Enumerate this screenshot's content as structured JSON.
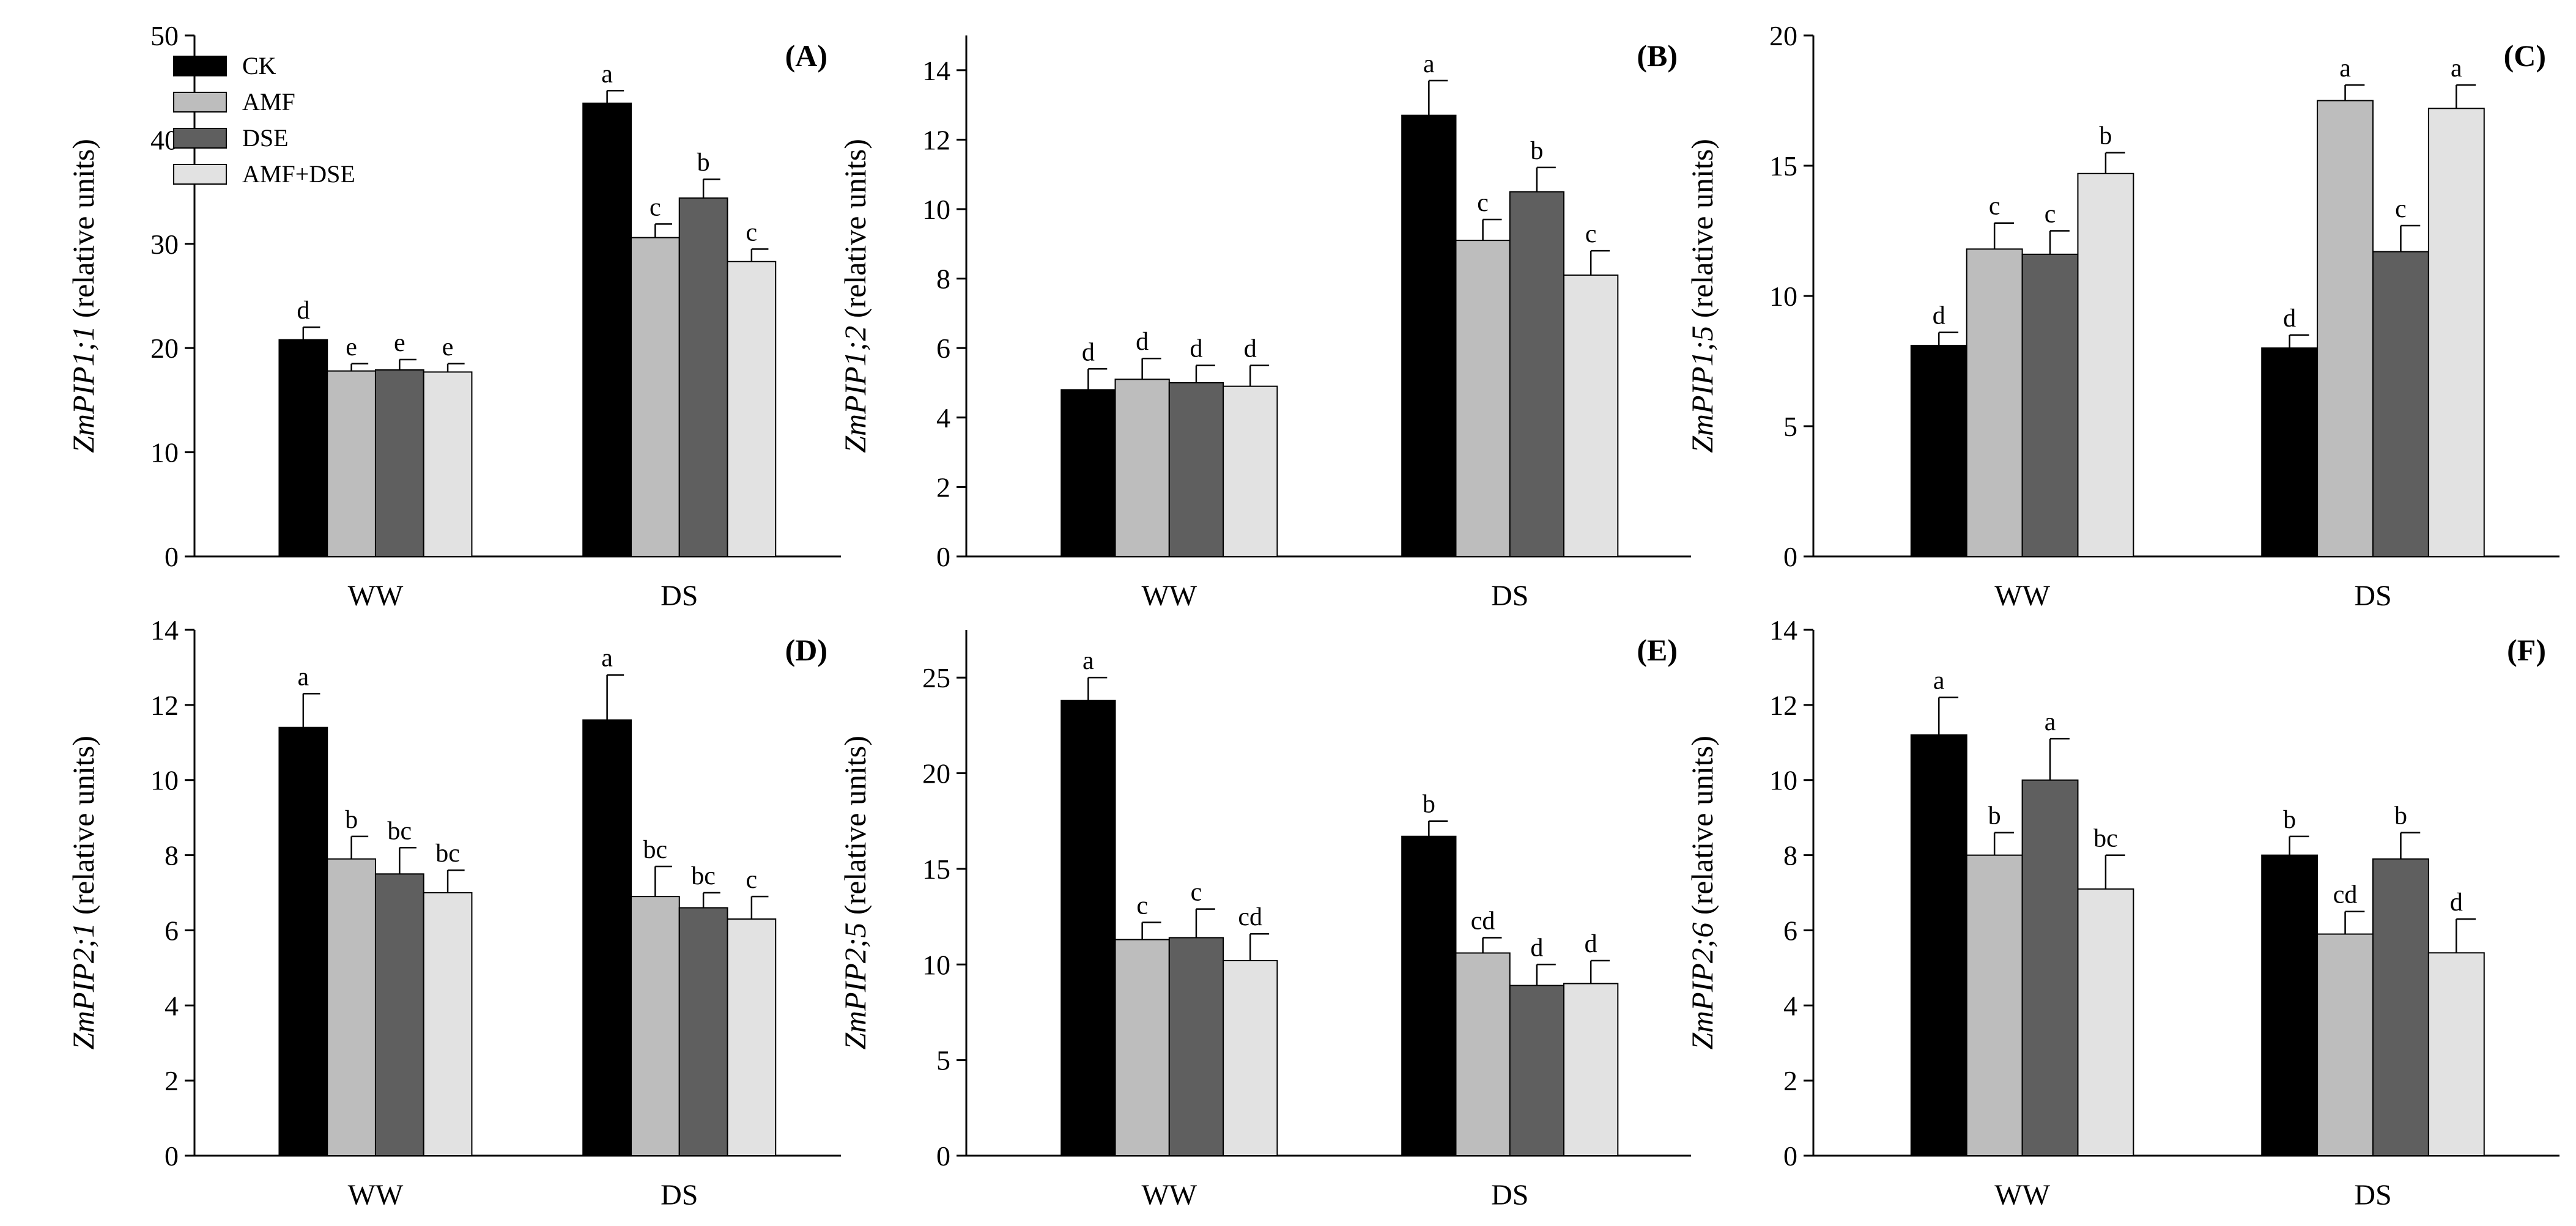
{
  "legend": {
    "items": [
      {
        "label": "CK",
        "color": "#000000"
      },
      {
        "label": "AMF",
        "color": "#bdbdbd"
      },
      {
        "label": "DSE",
        "color": "#5f5f5f"
      },
      {
        "label": "AMF+DSE",
        "color": "#e2e2e2"
      }
    ]
  },
  "chart_data": [
    {
      "type": "bar",
      "panel": "(A)",
      "gene": "ZmPIP1;1",
      "unit": "(relative units)",
      "categories": [
        "WW",
        "DS"
      ],
      "ylim": [
        0,
        50
      ],
      "yticks": [
        0,
        10,
        20,
        30,
        40,
        50
      ],
      "series": [
        {
          "name": "CK",
          "values": [
            20.8,
            43.5
          ],
          "errors": [
            1.2,
            1.2
          ],
          "letters": [
            "d",
            "a"
          ]
        },
        {
          "name": "AMF",
          "values": [
            17.8,
            30.6
          ],
          "errors": [
            0.7,
            1.3
          ],
          "letters": [
            "e",
            "c"
          ]
        },
        {
          "name": "DSE",
          "values": [
            17.9,
            34.4
          ],
          "errors": [
            1.0,
            1.8
          ],
          "letters": [
            "e",
            "b"
          ]
        },
        {
          "name": "AMF+DSE",
          "values": [
            17.7,
            28.3
          ],
          "errors": [
            0.8,
            1.2
          ],
          "letters": [
            "e",
            "c"
          ]
        }
      ]
    },
    {
      "type": "bar",
      "panel": "(B)",
      "gene": "ZmPIP1;2",
      "unit": "(relative units)",
      "categories": [
        "WW",
        "DS"
      ],
      "ylim": [
        0,
        15
      ],
      "yticks": [
        0,
        2,
        4,
        6,
        8,
        10,
        12,
        14
      ],
      "series": [
        {
          "name": "CK",
          "values": [
            4.8,
            12.7
          ],
          "errors": [
            0.6,
            1.0
          ],
          "letters": [
            "d",
            "a"
          ]
        },
        {
          "name": "AMF",
          "values": [
            5.1,
            9.1
          ],
          "errors": [
            0.6,
            0.6
          ],
          "letters": [
            "d",
            "c"
          ]
        },
        {
          "name": "DSE",
          "values": [
            5.0,
            10.5
          ],
          "errors": [
            0.5,
            0.7
          ],
          "letters": [
            "d",
            "b"
          ]
        },
        {
          "name": "AMF+DSE",
          "values": [
            4.9,
            8.1
          ],
          "errors": [
            0.6,
            0.7
          ],
          "letters": [
            "d",
            "c"
          ]
        }
      ]
    },
    {
      "type": "bar",
      "panel": "(C)",
      "gene": "ZmPIP1;5",
      "unit": "(relative units)",
      "categories": [
        "WW",
        "DS"
      ],
      "ylim": [
        0,
        20
      ],
      "yticks": [
        0,
        5,
        10,
        15,
        20
      ],
      "series": [
        {
          "name": "CK",
          "values": [
            8.1,
            8.0
          ],
          "errors": [
            0.5,
            0.5
          ],
          "letters": [
            "d",
            "d"
          ]
        },
        {
          "name": "AMF",
          "values": [
            11.8,
            17.5
          ],
          "errors": [
            1.0,
            0.6
          ],
          "letters": [
            "c",
            "a"
          ]
        },
        {
          "name": "DSE",
          "values": [
            11.6,
            11.7
          ],
          "errors": [
            0.9,
            1.0
          ],
          "letters": [
            "c",
            "c"
          ]
        },
        {
          "name": "AMF+DSE",
          "values": [
            14.7,
            17.2
          ],
          "errors": [
            0.8,
            0.9
          ],
          "letters": [
            "b",
            "a"
          ]
        }
      ]
    },
    {
      "type": "bar",
      "panel": "(D)",
      "gene": "ZmPIP2;1",
      "unit": "(relative units)",
      "categories": [
        "WW",
        "DS"
      ],
      "ylim": [
        0,
        14
      ],
      "yticks": [
        0,
        2,
        4,
        6,
        8,
        10,
        12,
        14
      ],
      "series": [
        {
          "name": "CK",
          "values": [
            11.4,
            11.6
          ],
          "errors": [
            0.9,
            1.2
          ],
          "letters": [
            "a",
            "a"
          ]
        },
        {
          "name": "AMF",
          "values": [
            7.9,
            6.9
          ],
          "errors": [
            0.6,
            0.8
          ],
          "letters": [
            "b",
            "bc"
          ]
        },
        {
          "name": "DSE",
          "values": [
            7.5,
            6.6
          ],
          "errors": [
            0.7,
            0.4
          ],
          "letters": [
            "bc",
            "bc"
          ]
        },
        {
          "name": "AMF+DSE",
          "values": [
            7.0,
            6.3
          ],
          "errors": [
            0.6,
            0.6
          ],
          "letters": [
            "bc",
            "c"
          ]
        }
      ]
    },
    {
      "type": "bar",
      "panel": "(E)",
      "gene": "ZmPIP2;5",
      "unit": "(relative units)",
      "categories": [
        "WW",
        "DS"
      ],
      "ylim": [
        0,
        27.5
      ],
      "yticks": [
        0,
        5,
        10,
        15,
        20,
        25
      ],
      "series": [
        {
          "name": "CK",
          "values": [
            23.8,
            16.7
          ],
          "errors": [
            1.2,
            0.8
          ],
          "letters": [
            "a",
            "b"
          ]
        },
        {
          "name": "AMF",
          "values": [
            11.3,
            10.6
          ],
          "errors": [
            0.9,
            0.8
          ],
          "letters": [
            "c",
            "cd"
          ]
        },
        {
          "name": "DSE",
          "values": [
            11.4,
            8.9
          ],
          "errors": [
            1.5,
            1.1
          ],
          "letters": [
            "c",
            "d"
          ]
        },
        {
          "name": "AMF+DSE",
          "values": [
            10.2,
            9.0
          ],
          "errors": [
            1.4,
            1.2
          ],
          "letters": [
            "cd",
            "d"
          ]
        }
      ]
    },
    {
      "type": "bar",
      "panel": "(F)",
      "gene": "ZmPIP2;6",
      "unit": "(relative units)",
      "categories": [
        "WW",
        "DS"
      ],
      "ylim": [
        0,
        14
      ],
      "yticks": [
        0,
        2,
        4,
        6,
        8,
        10,
        12,
        14
      ],
      "series": [
        {
          "name": "CK",
          "values": [
            11.2,
            8.0
          ],
          "errors": [
            1.0,
            0.5
          ],
          "letters": [
            "a",
            "b"
          ]
        },
        {
          "name": "AMF",
          "values": [
            8.0,
            5.9
          ],
          "errors": [
            0.6,
            0.6
          ],
          "letters": [
            "b",
            "cd"
          ]
        },
        {
          "name": "DSE",
          "values": [
            10.0,
            7.9
          ],
          "errors": [
            1.1,
            0.7
          ],
          "letters": [
            "a",
            "b"
          ]
        },
        {
          "name": "AMF+DSE",
          "values": [
            7.1,
            5.4
          ],
          "errors": [
            0.9,
            0.9
          ],
          "letters": [
            "bc",
            "d"
          ]
        }
      ]
    }
  ]
}
